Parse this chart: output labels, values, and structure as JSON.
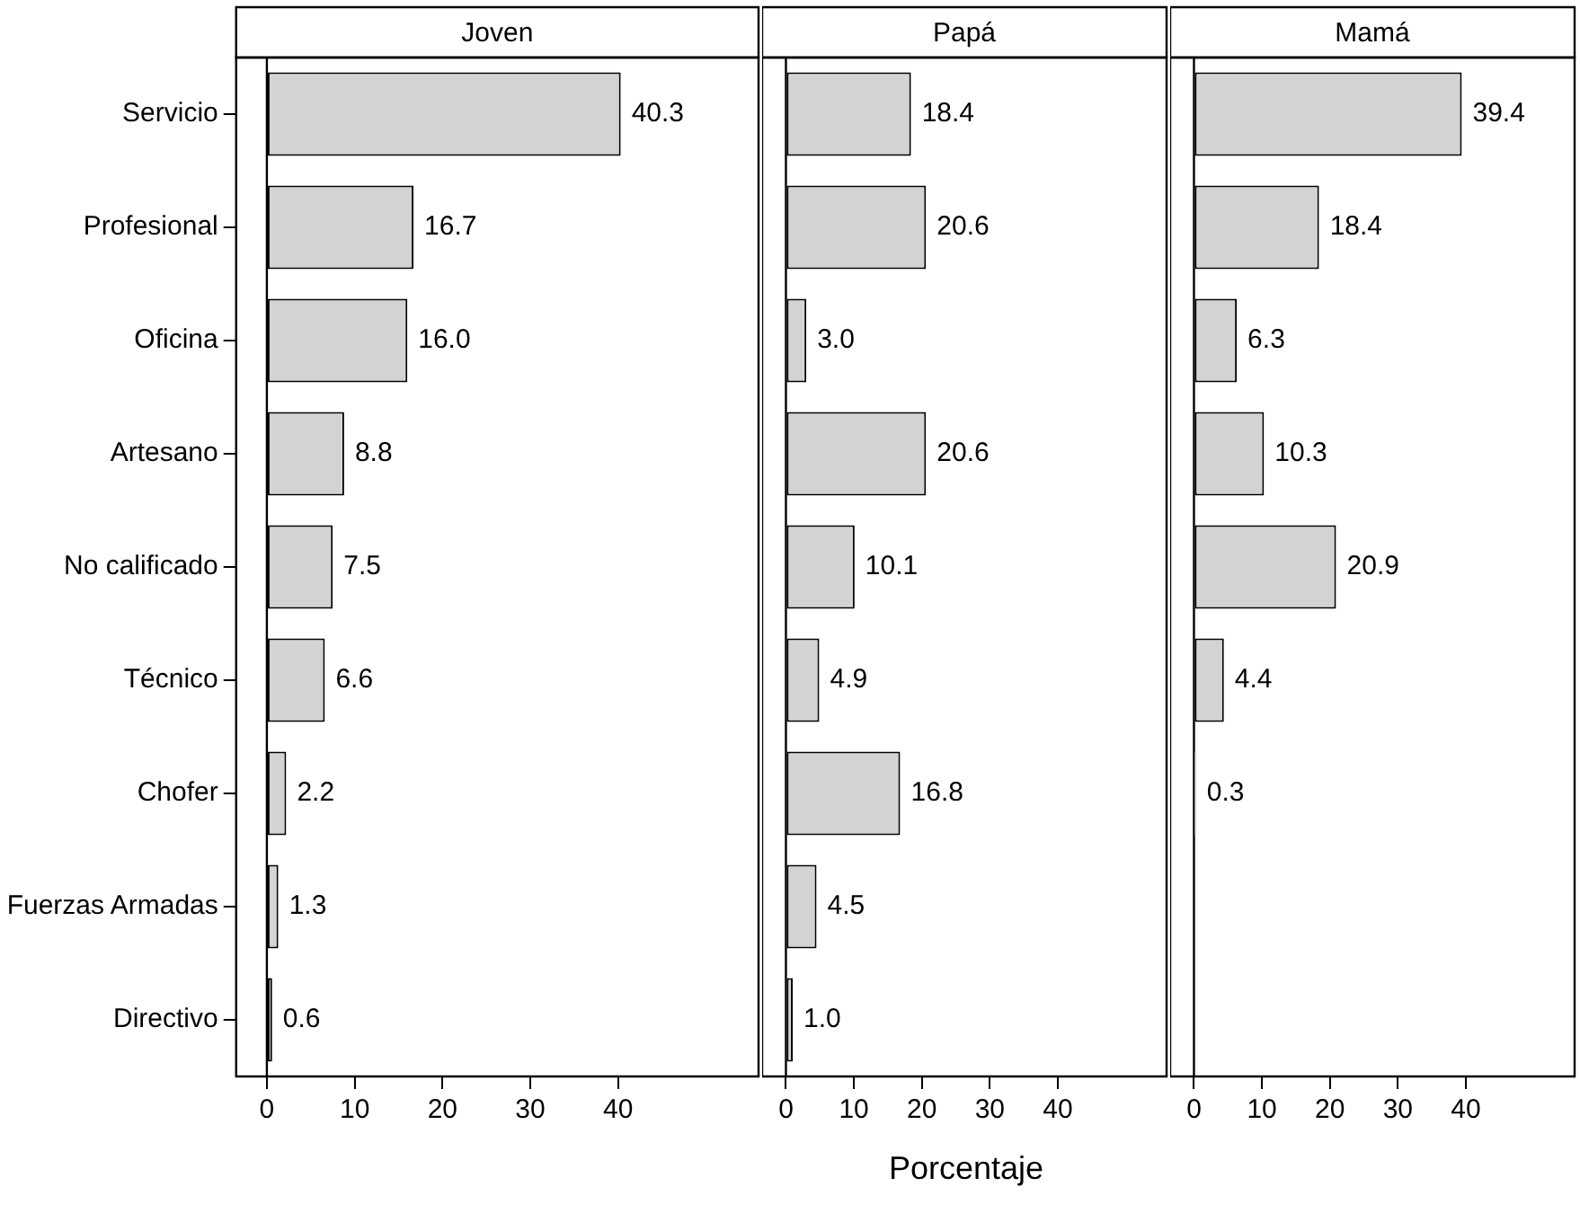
{
  "chart_data": [
    {
      "type": "bar",
      "orientation": "horizontal",
      "title": "Joven",
      "categories": [
        "Servicio",
        "Profesional",
        "Oficina",
        "Artesano",
        "No calificado",
        "Técnico",
        "Chofer",
        "Fuerzas Armadas",
        "Directivo"
      ],
      "values": [
        40.3,
        16.7,
        16.0,
        8.8,
        7.5,
        6.6,
        2.2,
        1.3,
        0.6
      ],
      "value_labels": [
        "40.3",
        "16.7",
        "16.0",
        "8.8",
        "7.5",
        "6.6",
        "2.2",
        "1.3",
        "0.6"
      ],
      "color": "#d3d3d3",
      "xlim": [
        -3.5,
        56
      ],
      "xticks": [
        0,
        10,
        20,
        30,
        40
      ],
      "ref_lines": [
        {
          "axis": "x",
          "value": 0
        }
      ],
      "grid": false,
      "legend": false
    },
    {
      "type": "bar",
      "orientation": "horizontal",
      "title": "Papá",
      "xlabel": "Porcentaje",
      "categories": [
        null,
        null,
        null,
        null,
        null,
        null,
        null,
        null,
        null
      ],
      "values": [
        18.4,
        20.6,
        3.0,
        20.6,
        10.1,
        4.9,
        16.8,
        4.5,
        1.0
      ],
      "value_labels": [
        "18.4",
        "20.6",
        "3.0",
        "20.6",
        "10.1",
        "4.9",
        "16.8",
        "4.5",
        "1.0"
      ],
      "color": "#d3d3d3",
      "xlim": [
        -3.5,
        56
      ],
      "xticks": [
        0,
        10,
        20,
        30,
        40
      ],
      "ref_lines": [
        {
          "axis": "x",
          "value": 0
        }
      ],
      "grid": false,
      "legend": false,
      "tick_labels": "x"
    },
    {
      "type": "bar",
      "orientation": "horizontal",
      "title": "Mamá",
      "categories": [
        null,
        null,
        null,
        null,
        null,
        null,
        null,
        null,
        null
      ],
      "values": [
        39.4,
        18.4,
        6.3,
        10.3,
        20.9,
        4.4,
        0.3,
        null,
        null
      ],
      "value_labels": [
        "39.4",
        "18.4",
        "6.3",
        "10.3",
        "20.9",
        "4.4",
        "0.3",
        null,
        null
      ],
      "color": "#d3d3d3",
      "xlim": [
        -3.5,
        56
      ],
      "xticks": [
        0,
        10,
        20,
        30,
        40
      ],
      "ref_lines": [
        {
          "axis": "x",
          "value": 0
        }
      ],
      "grid": false,
      "legend": false,
      "tick_labels": "x"
    }
  ]
}
